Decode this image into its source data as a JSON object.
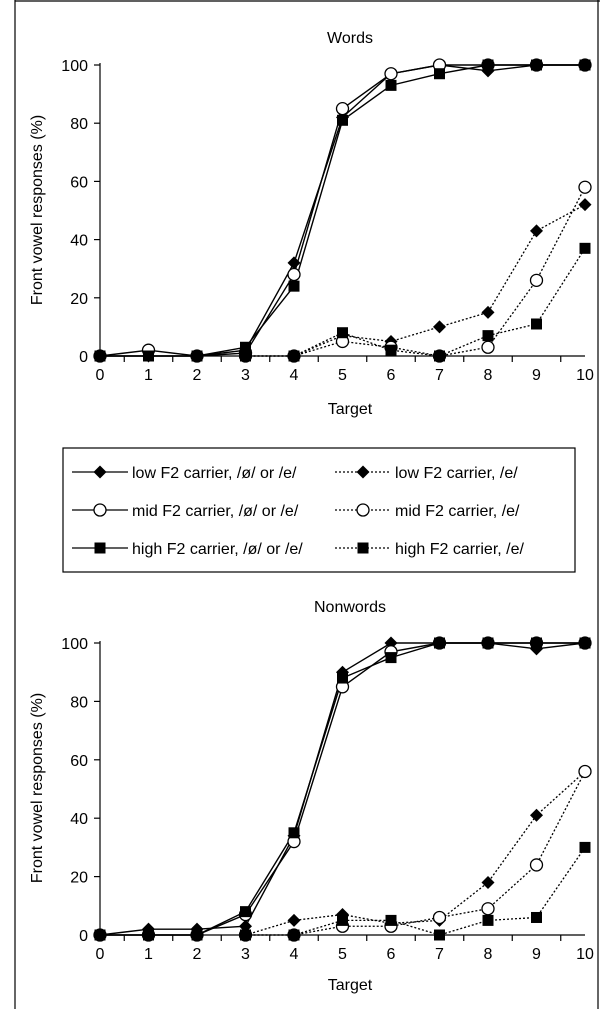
{
  "chart_data": [
    {
      "type": "line",
      "title": "Words",
      "xlabel": "Target",
      "ylabel": "Front vowel responses (%)",
      "x": [
        0,
        1,
        2,
        3,
        4,
        5,
        6,
        7,
        8,
        9,
        10
      ],
      "xlim": [
        0,
        10
      ],
      "ylim": [
        0,
        100
      ],
      "yticks": [
        0,
        20,
        40,
        60,
        80,
        100
      ],
      "grid": false,
      "series": [
        {
          "name": "low F2 carrier, /ø/ or /e/",
          "marker": "diamond",
          "style": "solid",
          "values": [
            0,
            0,
            0,
            2,
            32,
            82,
            97,
            100,
            98,
            100,
            100
          ]
        },
        {
          "name": "mid F2 carrier, /ø/ or /e/",
          "marker": "circle",
          "style": "solid",
          "values": [
            0,
            2,
            0,
            1,
            28,
            85,
            97,
            100,
            100,
            100,
            100
          ]
        },
        {
          "name": "high F2 carrier, /ø/ or /e/",
          "marker": "square",
          "style": "solid",
          "values": [
            0,
            0,
            0,
            3,
            24,
            81,
            93,
            97,
            100,
            100,
            100
          ]
        },
        {
          "name": "low F2 carrier, /e/",
          "marker": "diamond",
          "style": "dotted",
          "values": [
            null,
            null,
            null,
            0,
            0,
            7,
            5,
            10,
            15,
            43,
            52
          ]
        },
        {
          "name": "mid F2 carrier, /e/",
          "marker": "circle",
          "style": "dotted",
          "values": [
            null,
            null,
            null,
            0,
            0,
            5,
            3,
            0,
            3,
            26,
            58
          ]
        },
        {
          "name": "high F2 carrier, /e/",
          "marker": "square",
          "style": "dotted",
          "values": [
            null,
            null,
            null,
            0,
            0,
            8,
            2,
            0,
            7,
            11,
            37
          ]
        }
      ]
    },
    {
      "type": "line",
      "title": "Nonwords",
      "xlabel": "Target",
      "ylabel": "Front vowel responses (%)",
      "x": [
        0,
        1,
        2,
        3,
        4,
        5,
        6,
        7,
        8,
        9,
        10
      ],
      "xlim": [
        0,
        10
      ],
      "ylim": [
        0,
        100
      ],
      "yticks": [
        0,
        20,
        40,
        60,
        80,
        100
      ],
      "grid": false,
      "series": [
        {
          "name": "low F2 carrier, /ø/ or /e/",
          "marker": "diamond",
          "style": "solid",
          "values": [
            0,
            2,
            2,
            3,
            34,
            90,
            100,
            100,
            100,
            98,
            100
          ]
        },
        {
          "name": "mid F2 carrier, /ø/ or /e/",
          "marker": "circle",
          "style": "solid",
          "values": [
            0,
            0,
            0,
            7,
            32,
            85,
            97,
            100,
            100,
            100,
            100
          ]
        },
        {
          "name": "high F2 carrier, /ø/ or /e/",
          "marker": "square",
          "style": "solid",
          "values": [
            0,
            0,
            0,
            8,
            35,
            88,
            95,
            100,
            100,
            100,
            100
          ]
        },
        {
          "name": "low F2 carrier, /e/",
          "marker": "diamond",
          "style": "dotted",
          "values": [
            null,
            null,
            null,
            0,
            5,
            7,
            4,
            5,
            18,
            41,
            56
          ]
        },
        {
          "name": "mid F2 carrier, /e/",
          "marker": "circle",
          "style": "dotted",
          "values": [
            null,
            null,
            null,
            0,
            0,
            3,
            3,
            6,
            9,
            24,
            56
          ]
        },
        {
          "name": "high F2 carrier, /e/",
          "marker": "square",
          "style": "dotted",
          "values": [
            null,
            null,
            null,
            0,
            0,
            5,
            5,
            0,
            5,
            6,
            30
          ]
        }
      ]
    }
  ],
  "legend": {
    "placement": "between-charts",
    "entries": [
      {
        "label": "low F2 carrier, /ø/ or /e/",
        "marker": "diamond",
        "style": "solid"
      },
      {
        "label": "low F2 carrier, /e/",
        "marker": "diamond",
        "style": "dotted"
      },
      {
        "label": "mid F2 carrier, /ø/ or /e/",
        "marker": "circle",
        "style": "solid"
      },
      {
        "label": "mid F2 carrier, /e/",
        "marker": "circle",
        "style": "dotted"
      },
      {
        "label": "high F2 carrier, /ø/ or /e/",
        "marker": "square",
        "style": "solid"
      },
      {
        "label": "high F2 carrier, /e/",
        "marker": "square",
        "style": "dotted"
      }
    ]
  },
  "colors": {
    "line": "#000000",
    "background": "#ffffff",
    "open_marker_fill": "#ffffff"
  }
}
